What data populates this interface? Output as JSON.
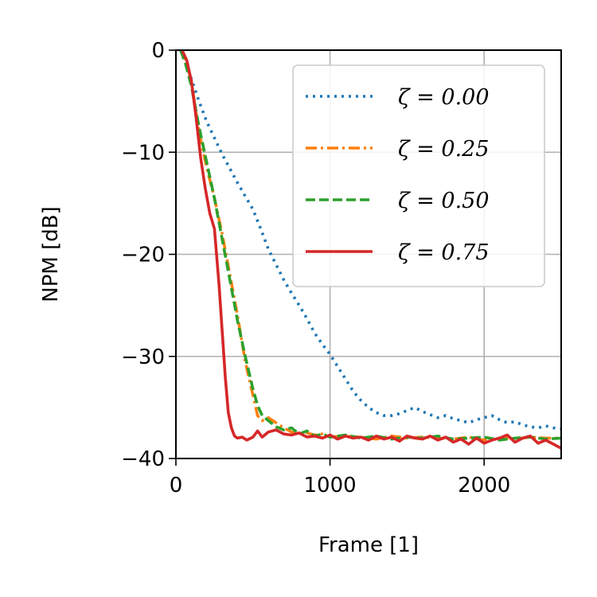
{
  "chart_data": {
    "type": "line",
    "title": "",
    "xlabel": "Frame [1]",
    "ylabel": "NPM [dB]",
    "xlim": [
      0,
      2500
    ],
    "ylim": [
      -40,
      0
    ],
    "xticks": [
      0,
      1000,
      2000
    ],
    "yticks": [
      0,
      -10,
      -20,
      -30,
      -40
    ],
    "xtick_labels": [
      "0",
      "1000",
      "2000"
    ],
    "ytick_labels": [
      "0",
      "−10",
      "−20",
      "−30",
      "−40"
    ],
    "grid": true,
    "legend_position": "top-right",
    "series": [
      {
        "name": "ζ = 0.00",
        "color": "#1f77b4",
        "dash": "dotted",
        "x": [
          30,
          60,
          100,
          150,
          200,
          250,
          300,
          350,
          400,
          450,
          500,
          550,
          600,
          650,
          700,
          750,
          800,
          850,
          900,
          950,
          1000,
          1050,
          1100,
          1150,
          1200,
          1250,
          1300,
          1350,
          1400,
          1450,
          1500,
          1550,
          1600,
          1650,
          1700,
          1750,
          1800,
          1850,
          1900,
          1950,
          2000,
          2050,
          2100,
          2150,
          2200,
          2250,
          2300,
          2350,
          2400,
          2450,
          2500
        ],
        "y": [
          0,
          -1.2,
          -2.8,
          -5.0,
          -7.0,
          -8.6,
          -10.2,
          -11.6,
          -13.0,
          -14.3,
          -15.6,
          -17.5,
          -19.5,
          -21.0,
          -22.5,
          -23.8,
          -25.0,
          -26.3,
          -27.7,
          -28.8,
          -29.8,
          -31.0,
          -32.2,
          -33.4,
          -34.3,
          -35.0,
          -35.5,
          -35.8,
          -35.8,
          -35.6,
          -35.3,
          -35.0,
          -35.4,
          -35.7,
          -36.0,
          -35.8,
          -36.1,
          -36.3,
          -36.5,
          -36.2,
          -36.0,
          -35.8,
          -36.2,
          -36.5,
          -36.4,
          -36.7,
          -36.9,
          -37.0,
          -36.8,
          -37.0,
          -37.1
        ]
      },
      {
        "name": "ζ = 0.25",
        "color": "#ff7f0e",
        "dash": "dashdot",
        "x": [
          30,
          60,
          100,
          150,
          200,
          250,
          300,
          350,
          400,
          450,
          500,
          530,
          560,
          600,
          650,
          700,
          750,
          800,
          850,
          900,
          950,
          1000,
          1100,
          1200,
          1300,
          1400,
          1500,
          1600,
          1700,
          1800,
          1900,
          2000,
          2100,
          2200,
          2300,
          2400,
          2500
        ],
        "y": [
          0,
          -0.8,
          -3.0,
          -8.0,
          -11.5,
          -14.5,
          -18.0,
          -22.0,
          -26.0,
          -30.5,
          -33.8,
          -35.8,
          -36.3,
          -36.0,
          -36.5,
          -37.0,
          -37.4,
          -37.6,
          -37.5,
          -37.7,
          -37.6,
          -37.9,
          -37.8,
          -37.9,
          -38.1,
          -37.8,
          -38.0,
          -37.9,
          -38.0,
          -38.1,
          -37.9,
          -38.2,
          -38.0,
          -38.1,
          -37.9,
          -38.0,
          -38.0
        ]
      },
      {
        "name": "ζ = 0.50",
        "color": "#2ca02c",
        "dash": "dashed",
        "x": [
          30,
          60,
          100,
          150,
          200,
          250,
          300,
          350,
          400,
          450,
          500,
          530,
          560,
          600,
          650,
          700,
          750,
          800,
          850,
          900,
          950,
          1000,
          1100,
          1200,
          1300,
          1400,
          1500,
          1600,
          1700,
          1800,
          1900,
          2000,
          2100,
          2200,
          2300,
          2400,
          2500
        ],
        "y": [
          0,
          -1.2,
          -3.5,
          -7.5,
          -11.0,
          -14.5,
          -18.5,
          -22.5,
          -26.5,
          -30.0,
          -33.2,
          -34.8,
          -35.8,
          -36.3,
          -36.9,
          -37.2,
          -37.0,
          -37.6,
          -37.3,
          -37.8,
          -37.6,
          -37.9,
          -37.7,
          -38.0,
          -37.8,
          -38.1,
          -37.9,
          -38.0,
          -37.8,
          -38.1,
          -38.0,
          -37.9,
          -38.2,
          -38.0,
          -37.9,
          -38.1,
          -38.0
        ]
      },
      {
        "name": "ζ = 0.75",
        "color": "#d62728",
        "dash": "solid",
        "x": [
          40,
          70,
          100,
          130,
          160,
          190,
          220,
          250,
          280,
          300,
          320,
          340,
          360,
          380,
          400,
          430,
          460,
          500,
          530,
          560,
          600,
          650,
          700,
          750,
          800,
          850,
          900,
          950,
          1000,
          1050,
          1100,
          1150,
          1200,
          1250,
          1300,
          1350,
          1400,
          1450,
          1500,
          1550,
          1600,
          1650,
          1700,
          1750,
          1800,
          1850,
          1900,
          1950,
          2000,
          2050,
          2100,
          2150,
          2200,
          2250,
          2300,
          2350,
          2400,
          2450,
          2500
        ],
        "y": [
          0,
          -1.0,
          -3.0,
          -6.5,
          -10.5,
          -13.5,
          -16.0,
          -17.5,
          -23.0,
          -27.5,
          -32.0,
          -35.5,
          -37.0,
          -37.8,
          -38.0,
          -37.9,
          -38.2,
          -37.9,
          -37.3,
          -37.9,
          -37.4,
          -37.2,
          -37.6,
          -37.7,
          -37.5,
          -37.9,
          -37.8,
          -38.0,
          -37.7,
          -38.1,
          -37.8,
          -38.0,
          -37.9,
          -38.2,
          -37.8,
          -38.1,
          -37.9,
          -38.3,
          -37.8,
          -38.0,
          -38.1,
          -37.8,
          -38.2,
          -37.9,
          -38.4,
          -38.1,
          -38.6,
          -38.0,
          -38.5,
          -38.2,
          -38.0,
          -37.7,
          -38.4,
          -38.0,
          -37.8,
          -38.5,
          -38.2,
          -38.6,
          -39.0
        ]
      }
    ]
  }
}
